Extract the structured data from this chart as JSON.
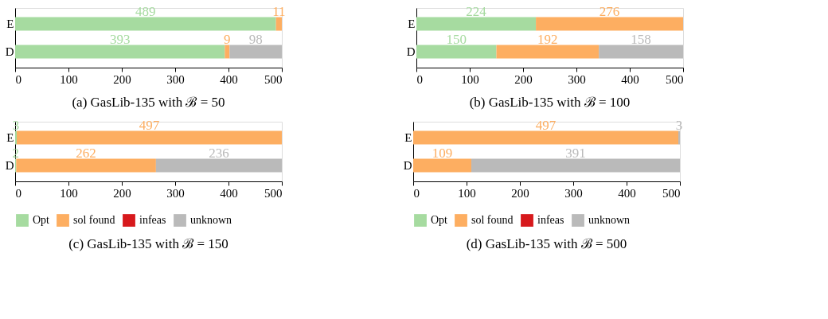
{
  "chart_data": [
    {
      "type": "bar",
      "orientation": "horizontal",
      "stacked": true,
      "title": "(a) GasLib-135 with ℬ = 50",
      "categories": [
        "E",
        "D"
      ],
      "xlim": [
        0,
        500
      ],
      "xticks": [
        0,
        100,
        200,
        300,
        400,
        500
      ],
      "grid": false,
      "legend": false,
      "series": [
        {
          "color": "#a6dba0",
          "values": [
            489,
            393
          ],
          "value_labels": [
            "489",
            "393"
          ]
        },
        {
          "color": "#fdae61",
          "values": [
            11,
            9
          ],
          "value_labels": [
            "11",
            "9"
          ]
        },
        {
          "color": "#d7191c",
          "values": [
            0,
            0
          ],
          "value_labels": [
            null,
            null
          ]
        },
        {
          "color": "#bababa",
          "values": [
            0,
            98
          ],
          "value_labels": [
            null,
            "98"
          ]
        }
      ]
    },
    {
      "type": "bar",
      "orientation": "horizontal",
      "stacked": true,
      "title": "(b) GasLib-135 with ℬ = 100",
      "categories": [
        "E",
        "D"
      ],
      "xlim": [
        0,
        500
      ],
      "xticks": [
        0,
        100,
        200,
        300,
        400,
        500
      ],
      "grid": false,
      "legend": false,
      "series": [
        {
          "color": "#a6dba0",
          "values": [
            224,
            150
          ],
          "value_labels": [
            "224",
            "150"
          ]
        },
        {
          "color": "#fdae61",
          "values": [
            276,
            192
          ],
          "value_labels": [
            "276",
            "192"
          ]
        },
        {
          "color": "#d7191c",
          "values": [
            0,
            0
          ],
          "value_labels": [
            null,
            null
          ]
        },
        {
          "color": "#bababa",
          "values": [
            0,
            158
          ],
          "value_labels": [
            null,
            "158"
          ]
        }
      ]
    },
    {
      "type": "bar",
      "orientation": "horizontal",
      "stacked": true,
      "title": "(c) GasLib-135 with ℬ = 150",
      "categories": [
        "E",
        "D"
      ],
      "xlim": [
        0,
        500
      ],
      "xticks": [
        0,
        100,
        200,
        300,
        400,
        500
      ],
      "grid": false,
      "legend": "bottom",
      "series": [
        {
          "name": "Opt",
          "color": "#a6dba0",
          "values": [
            3,
            2
          ],
          "value_labels": [
            "3",
            "2"
          ]
        },
        {
          "name": "sol found",
          "color": "#fdae61",
          "values": [
            497,
            262
          ],
          "value_labels": [
            "497",
            "262"
          ]
        },
        {
          "name": "infeas",
          "color": "#d7191c",
          "values": [
            0,
            0
          ],
          "value_labels": [
            null,
            null
          ]
        },
        {
          "name": "unknown",
          "color": "#bababa",
          "values": [
            0,
            236
          ],
          "value_labels": [
            null,
            "236"
          ]
        }
      ]
    },
    {
      "type": "bar",
      "orientation": "horizontal",
      "stacked": true,
      "title": "(d) GasLib-135 with ℬ = 500",
      "categories": [
        "E",
        "D"
      ],
      "xlim": [
        0,
        500
      ],
      "xticks": [
        0,
        100,
        200,
        300,
        400,
        500
      ],
      "grid": false,
      "legend": "bottom",
      "series": [
        {
          "name": "Opt",
          "color": "#a6dba0",
          "values": [
            0,
            0
          ],
          "value_labels": [
            null,
            null
          ]
        },
        {
          "name": "sol found",
          "color": "#fdae61",
          "values": [
            497,
            109
          ],
          "value_labels": [
            "497",
            "109"
          ]
        },
        {
          "name": "infeas",
          "color": "#d7191c",
          "values": [
            0,
            0
          ],
          "value_labels": [
            null,
            null
          ]
        },
        {
          "name": "unknown",
          "color": "#bababa",
          "values": [
            3,
            391
          ],
          "value_labels": [
            "3",
            "391"
          ]
        }
      ]
    }
  ]
}
